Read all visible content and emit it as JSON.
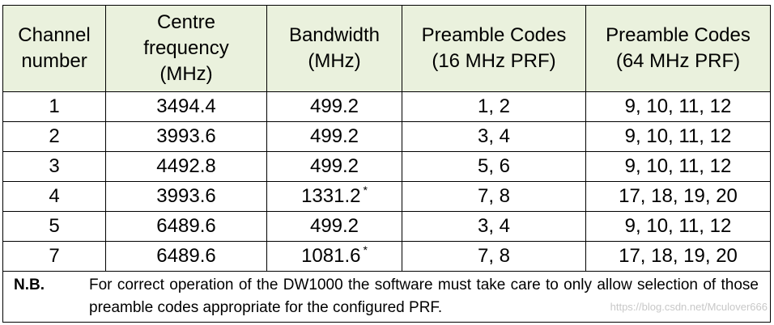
{
  "table": {
    "headers": [
      [
        "Channel",
        "number"
      ],
      [
        "Centre",
        "frequency",
        "(MHz)"
      ],
      [
        "Bandwidth",
        "(MHz)"
      ],
      [
        "Preamble Codes",
        "(16 MHz PRF)"
      ],
      [
        "Preamble Codes",
        "(64 MHz PRF)"
      ]
    ],
    "rows": [
      {
        "channel": "1",
        "frequency": "3494.4",
        "bandwidth": "499.2",
        "bw_mark": "",
        "codes16": "1, 2",
        "codes64": "9, 10, 11, 12"
      },
      {
        "channel": "2",
        "frequency": "3993.6",
        "bandwidth": "499.2",
        "bw_mark": "",
        "codes16": "3, 4",
        "codes64": "9, 10, 11, 12"
      },
      {
        "channel": "3",
        "frequency": "4492.8",
        "bandwidth": "499.2",
        "bw_mark": "",
        "codes16": "5, 6",
        "codes64": "9, 10, 11, 12"
      },
      {
        "channel": "4",
        "frequency": "3993.6",
        "bandwidth": "1331.2",
        "bw_mark": "*",
        "codes16": "7, 8",
        "codes64": "17, 18, 19, 20"
      },
      {
        "channel": "5",
        "frequency": "6489.6",
        "bandwidth": "499.2",
        "bw_mark": "",
        "codes16": "3, 4",
        "codes64": "9, 10, 11, 12"
      },
      {
        "channel": "7",
        "frequency": "6489.6",
        "bandwidth": "1081.6",
        "bw_mark": "*",
        "codes16": "7, 8",
        "codes64": "17, 18, 19, 20"
      }
    ]
  },
  "note": {
    "label": "N.B.",
    "text": "For correct operation of the DW1000 the software must take care to only allow selection of those preamble codes appropriate for the configured PRF."
  },
  "watermark": "https://blog.csdn.net/Mculover666"
}
